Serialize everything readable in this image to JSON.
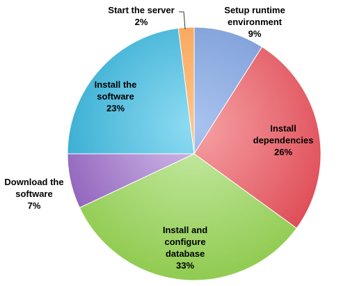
{
  "chart_data": {
    "type": "pie",
    "title": "",
    "slices": [
      {
        "label": "Setup runtime environment",
        "label_lines": [
          "Setup runtime",
          "environment"
        ],
        "value": 9,
        "value_label": "9%",
        "color": "#6f93d1",
        "color_light": "#a9c3ee"
      },
      {
        "label": "Install dependencies",
        "label_lines": [
          "Install",
          "dependencies"
        ],
        "value": 26,
        "value_label": "26%",
        "color": "#dd4550",
        "color_light": "#f6a3a6"
      },
      {
        "label": "Install and configure database",
        "label_lines": [
          "Install and",
          "configure",
          "database"
        ],
        "value": 33,
        "value_label": "33%",
        "color": "#8fca4e",
        "color_light": "#c9ecaa"
      },
      {
        "label": "Download the software",
        "label_lines": [
          "Download the",
          "software"
        ],
        "value": 7,
        "value_label": "7%",
        "color": "#8a5ab8",
        "color_light": "#d6c1ec"
      },
      {
        "label": "Install the software",
        "label_lines": [
          "Install the",
          "software"
        ],
        "value": 23,
        "value_label": "23%",
        "color": "#2aa6cc",
        "color_light": "#8fdcf3"
      },
      {
        "label": "Start the server",
        "label_lines": [
          "Start the server"
        ],
        "value": 2,
        "value_label": "2%",
        "color": "#f59a45",
        "color_light": "#ffc38a"
      }
    ]
  }
}
